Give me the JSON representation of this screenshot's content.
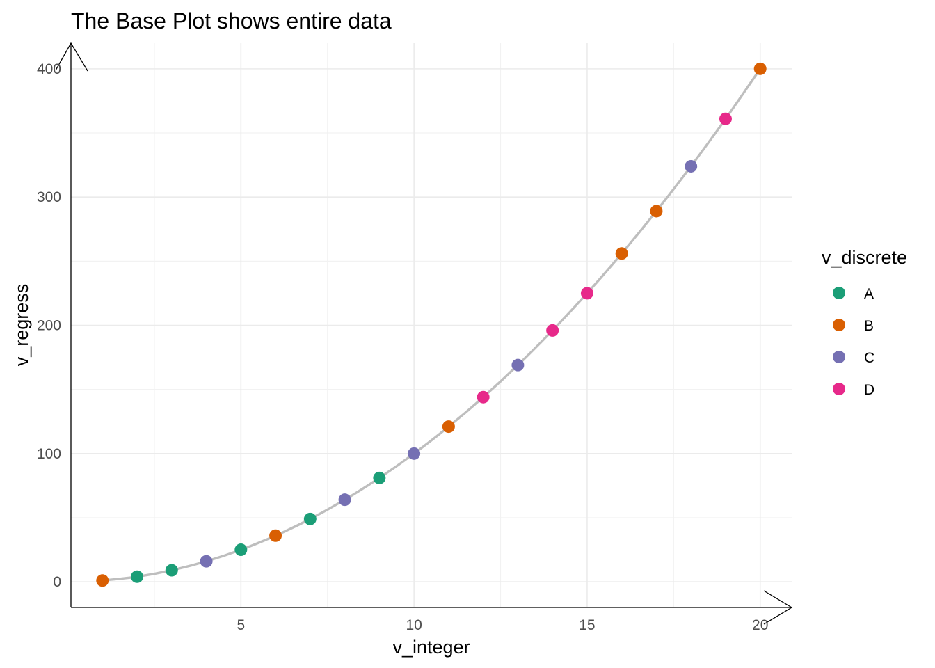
{
  "chart_data": {
    "type": "scatter",
    "title": "The Base Plot shows entire data",
    "xlabel": "v_integer",
    "ylabel": "v_regress",
    "xlim": [
      0.09,
      20.91
    ],
    "ylim": [
      -20,
      420
    ],
    "x_ticks": [
      5,
      10,
      15,
      20
    ],
    "y_ticks": [
      0,
      100,
      200,
      300,
      400
    ],
    "x_minor_gridlines": [
      2.5,
      7.5,
      12.5,
      17.5
    ],
    "y_minor_gridlines": [
      50,
      150,
      250,
      350
    ],
    "grid": true,
    "smooth_line": {
      "color": "#bebebe"
    },
    "legend": {
      "title": "v_discrete",
      "position": "right",
      "entries": [
        {
          "label": "A",
          "color": "#1b9e77"
        },
        {
          "label": "B",
          "color": "#d95f02"
        },
        {
          "label": "C",
          "color": "#7570b3"
        },
        {
          "label": "D",
          "color": "#e7298a"
        }
      ]
    },
    "points": [
      {
        "x": 1,
        "y": 1,
        "group": "B"
      },
      {
        "x": 2,
        "y": 4,
        "group": "A"
      },
      {
        "x": 3,
        "y": 9,
        "group": "A"
      },
      {
        "x": 4,
        "y": 16,
        "group": "C"
      },
      {
        "x": 5,
        "y": 25,
        "group": "A"
      },
      {
        "x": 6,
        "y": 36,
        "group": "B"
      },
      {
        "x": 7,
        "y": 49,
        "group": "A"
      },
      {
        "x": 8,
        "y": 64,
        "group": "C"
      },
      {
        "x": 9,
        "y": 81,
        "group": "A"
      },
      {
        "x": 10,
        "y": 100,
        "group": "C"
      },
      {
        "x": 11,
        "y": 121,
        "group": "B"
      },
      {
        "x": 12,
        "y": 144,
        "group": "D"
      },
      {
        "x": 13,
        "y": 169,
        "group": "C"
      },
      {
        "x": 14,
        "y": 196,
        "group": "D"
      },
      {
        "x": 15,
        "y": 225,
        "group": "D"
      },
      {
        "x": 16,
        "y": 256,
        "group": "B"
      },
      {
        "x": 17,
        "y": 289,
        "group": "B"
      },
      {
        "x": 18,
        "y": 324,
        "group": "C"
      },
      {
        "x": 19,
        "y": 361,
        "group": "D"
      },
      {
        "x": 20,
        "y": 400,
        "group": "B"
      }
    ]
  }
}
